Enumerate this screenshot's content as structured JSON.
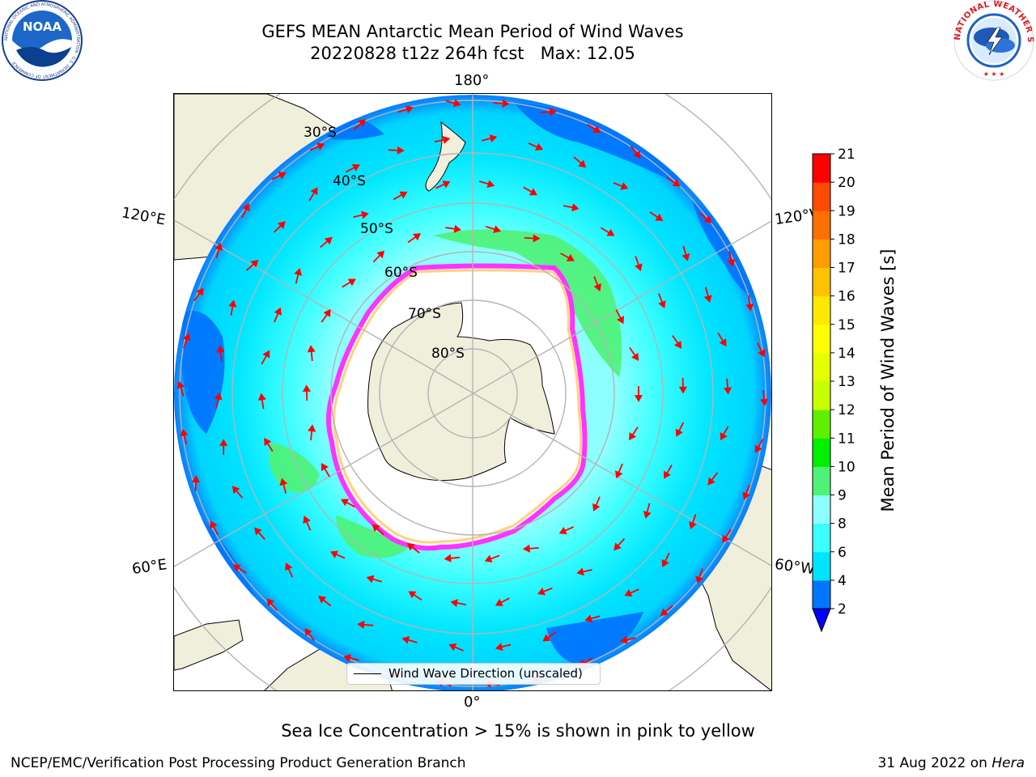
{
  "header": {
    "title_line1": "GEFS MEAN Antarctic Mean Period of Wind Waves",
    "title_line2": "20220828 t12z 264h fcst   Max: 12.05"
  },
  "logos": {
    "noaa_text": "NOAA",
    "noaa_ring_text": "NATIONAL OCEANIC AND ATMOSPHERIC ADMINISTRATION · U.S. DEPARTMENT OF COMMERCE",
    "nws_ring_text": "NATIONAL WEATHER SERVICE"
  },
  "map": {
    "projection": "south-polar-stereographic",
    "longitude_labels": {
      "top": "180°",
      "bottom": "0°",
      "left_upper": "120°E",
      "left_lower": "60°E",
      "right_upper": "120°W",
      "right_lower": "60°W"
    },
    "latitude_labels": [
      "30°S",
      "40°S",
      "50°S",
      "60°S",
      "70°S",
      "80°S"
    ],
    "legend_label": "Wind Wave Direction (unscaled)",
    "colors": {
      "land": "#efefdb",
      "ocean_low": "#0076ff",
      "ocean_mid": "#00e5ff",
      "ocean_light": "#8effff",
      "ocean_green": "#4ff276",
      "ice_edge": "#ff33ff",
      "ice_inner": "#ffd27f",
      "arrow": "#ff0000"
    }
  },
  "colorbar": {
    "title": "Mean Period of Wind Waves [s]",
    "ticks": [
      "2",
      "4",
      "6",
      "8",
      "9",
      "10",
      "11",
      "12",
      "13",
      "14",
      "15",
      "16",
      "17",
      "18",
      "19",
      "20",
      "21"
    ],
    "colors": [
      "#0076ff",
      "#00e5ff",
      "#3cffff",
      "#8effff",
      "#4ff276",
      "#00f000",
      "#5ff000",
      "#c6ff00",
      "#e4ff00",
      "#ffff00",
      "#ffe800",
      "#ffc300",
      "#ff9c00",
      "#ff6f00",
      "#ff4a00",
      "#ff0000"
    ],
    "under_color": "#0000ff"
  },
  "footer": {
    "caption": "Sea Ice Concentration > 15% is shown in pink to yellow",
    "left": "NCEP/EMC/Verification Post Processing Product Generation Branch",
    "right_date": "31 Aug 2022 on ",
    "right_machine": "Hera"
  }
}
